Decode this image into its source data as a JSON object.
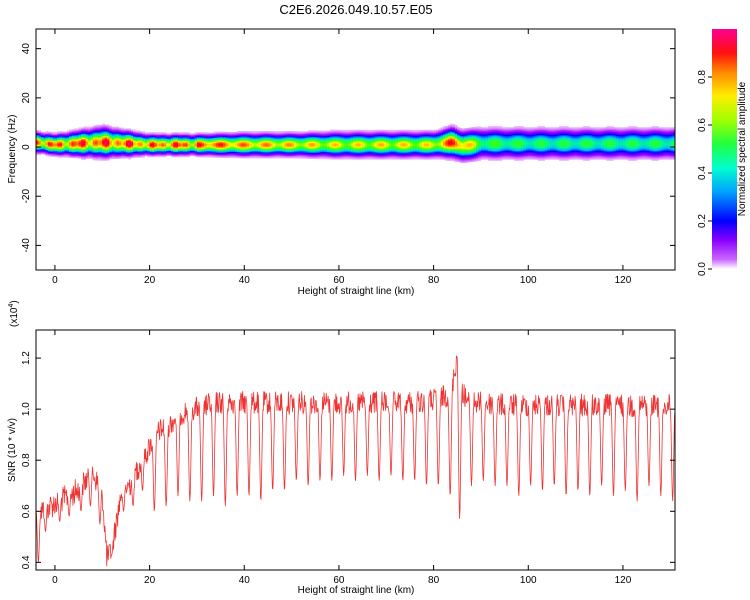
{
  "title": "C2E6.2026.049.10.57.E05",
  "chart_data": [
    {
      "type": "heatmap",
      "xlabel": "Height of straight line (km)",
      "ylabel": "Frequency (Hz)",
      "xlim": [
        -4,
        131
      ],
      "ylim": [
        -50,
        48
      ],
      "xticks": [
        "0",
        "20",
        "40",
        "60",
        "80",
        "100",
        "120"
      ],
      "yticks": [
        "40",
        "20",
        "0",
        "-20",
        "-40"
      ],
      "xtick_values": [
        0,
        20,
        40,
        60,
        80,
        100,
        120
      ],
      "ytick_values": [
        40,
        20,
        0,
        -20,
        -40
      ],
      "colorbar": {
        "label": "Normalized spectral amplitude",
        "range": [
          0,
          1
        ],
        "ticks": [
          "0.0",
          "0.2",
          "0.4",
          "0.6",
          "0.8"
        ],
        "tick_values": [
          0.0,
          0.2,
          0.4,
          0.6,
          0.8
        ],
        "colormap": [
          "#ffffff",
          "#a900ff",
          "#0000ff",
          "#00bfff",
          "#00ff80",
          "#40ff00",
          "#ffff00",
          "#ff8000",
          "#ff0000",
          "#ff00a0"
        ]
      },
      "band": {
        "x": [
          -4,
          0,
          5,
          10,
          15,
          20,
          25,
          30,
          40,
          50,
          60,
          70,
          80,
          84,
          86,
          90,
          100,
          110,
          120,
          131
        ],
        "center": [
          2,
          1,
          1.5,
          2,
          1.5,
          1,
          1,
          1,
          1,
          1,
          1,
          1,
          1,
          2,
          0.5,
          1.5,
          1.5,
          1.5,
          1.5,
          1.5
        ],
        "halfwidth": [
          4,
          4,
          5,
          6,
          5,
          4,
          4,
          4,
          4.5,
          4.5,
          5,
          5,
          5,
          6,
          6,
          6,
          6,
          6,
          6,
          6
        ],
        "peak": [
          0.95,
          0.9,
          0.95,
          0.95,
          0.95,
          0.9,
          0.95,
          0.9,
          0.8,
          0.75,
          0.7,
          0.72,
          0.7,
          0.9,
          0.85,
          0.55,
          0.5,
          0.5,
          0.5,
          0.5
        ]
      }
    },
    {
      "type": "line",
      "xlabel": "Height of straight line (km)",
      "ylabel": "SNR (10 * v/v)",
      "y_multiplier_label": "(x10",
      "y_multiplier_exp": "4",
      "xlim": [
        -4,
        131
      ],
      "ylim": [
        0.37,
        1.31
      ],
      "xticks": [
        "0",
        "20",
        "40",
        "60",
        "80",
        "100",
        "120"
      ],
      "yticks": [
        "0.4",
        "0.6",
        "0.8",
        "1.0",
        "1.2"
      ],
      "xtick_values": [
        0,
        20,
        40,
        60,
        80,
        100,
        120
      ],
      "ytick_values": [
        0.4,
        0.6,
        0.8,
        1.0,
        1.2
      ],
      "color": "#ee3333",
      "series": [
        {
          "x": [
            -4,
            -2,
            0,
            2,
            4,
            6,
            8,
            10,
            11,
            12,
            14,
            16,
            18,
            20,
            22,
            24,
            26,
            28,
            30,
            32,
            34,
            36,
            38,
            40,
            45,
            50,
            55,
            60,
            65,
            70,
            75,
            80,
            83,
            84,
            85,
            86,
            87,
            88,
            90,
            95,
            100,
            105,
            110,
            115,
            120,
            125,
            131
          ],
          "envelope": [
            0.64,
            0.66,
            0.68,
            0.7,
            0.72,
            0.76,
            0.8,
            0.72,
            0.46,
            0.5,
            0.72,
            0.76,
            0.84,
            0.9,
            0.96,
            0.98,
            1.02,
            1.04,
            1.05,
            1.06,
            1.07,
            1.07,
            1.07,
            1.07,
            1.07,
            1.07,
            1.07,
            1.07,
            1.07,
            1.07,
            1.07,
            1.08,
            1.1,
            1.14,
            1.26,
            1.12,
            1.08,
            1.07,
            1.07,
            1.06,
            1.06,
            1.06,
            1.06,
            1.06,
            1.06,
            1.06,
            1.06
          ],
          "dips": [
            [
              -3.5,
              0.4
            ],
            [
              -2,
              0.52
            ],
            [
              1,
              0.56
            ],
            [
              3,
              0.58
            ],
            [
              5.5,
              0.6
            ],
            [
              7.5,
              0.62
            ],
            [
              9.5,
              0.55
            ],
            [
              12,
              0.43
            ],
            [
              14.5,
              0.6
            ],
            [
              16.5,
              0.62
            ],
            [
              18.5,
              0.68
            ],
            [
              21,
              0.6
            ],
            [
              23.5,
              0.62
            ],
            [
              26,
              0.66
            ],
            [
              28.5,
              0.64
            ],
            [
              31,
              0.64
            ],
            [
              33.5,
              0.66
            ],
            [
              36,
              0.62
            ],
            [
              38.5,
              0.66
            ],
            [
              41,
              0.66
            ],
            [
              43.5,
              0.64
            ],
            [
              46,
              0.68
            ],
            [
              48.5,
              0.68
            ],
            [
              51,
              0.72
            ],
            [
              53.5,
              0.7
            ],
            [
              56,
              0.72
            ],
            [
              58.5,
              0.72
            ],
            [
              61,
              0.74
            ],
            [
              63.5,
              0.72
            ],
            [
              66,
              0.74
            ],
            [
              68.5,
              0.72
            ],
            [
              71,
              0.74
            ],
            [
              73.5,
              0.72
            ],
            [
              76,
              0.72
            ],
            [
              78.5,
              0.7
            ],
            [
              81,
              0.7
            ],
            [
              83.5,
              0.66
            ],
            [
              85.5,
              0.57
            ],
            [
              88,
              0.7
            ],
            [
              90.5,
              0.72
            ],
            [
              93,
              0.7
            ],
            [
              95.5,
              0.7
            ],
            [
              98,
              0.66
            ],
            [
              100.5,
              0.7
            ],
            [
              103,
              0.68
            ],
            [
              105.5,
              0.7
            ],
            [
              108,
              0.66
            ],
            [
              110.5,
              0.68
            ],
            [
              113,
              0.66
            ],
            [
              115.5,
              0.7
            ],
            [
              118,
              0.66
            ],
            [
              120.5,
              0.68
            ],
            [
              123,
              0.64
            ],
            [
              125.5,
              0.7
            ],
            [
              128,
              0.66
            ],
            [
              130.5,
              0.64
            ]
          ]
        }
      ]
    }
  ]
}
